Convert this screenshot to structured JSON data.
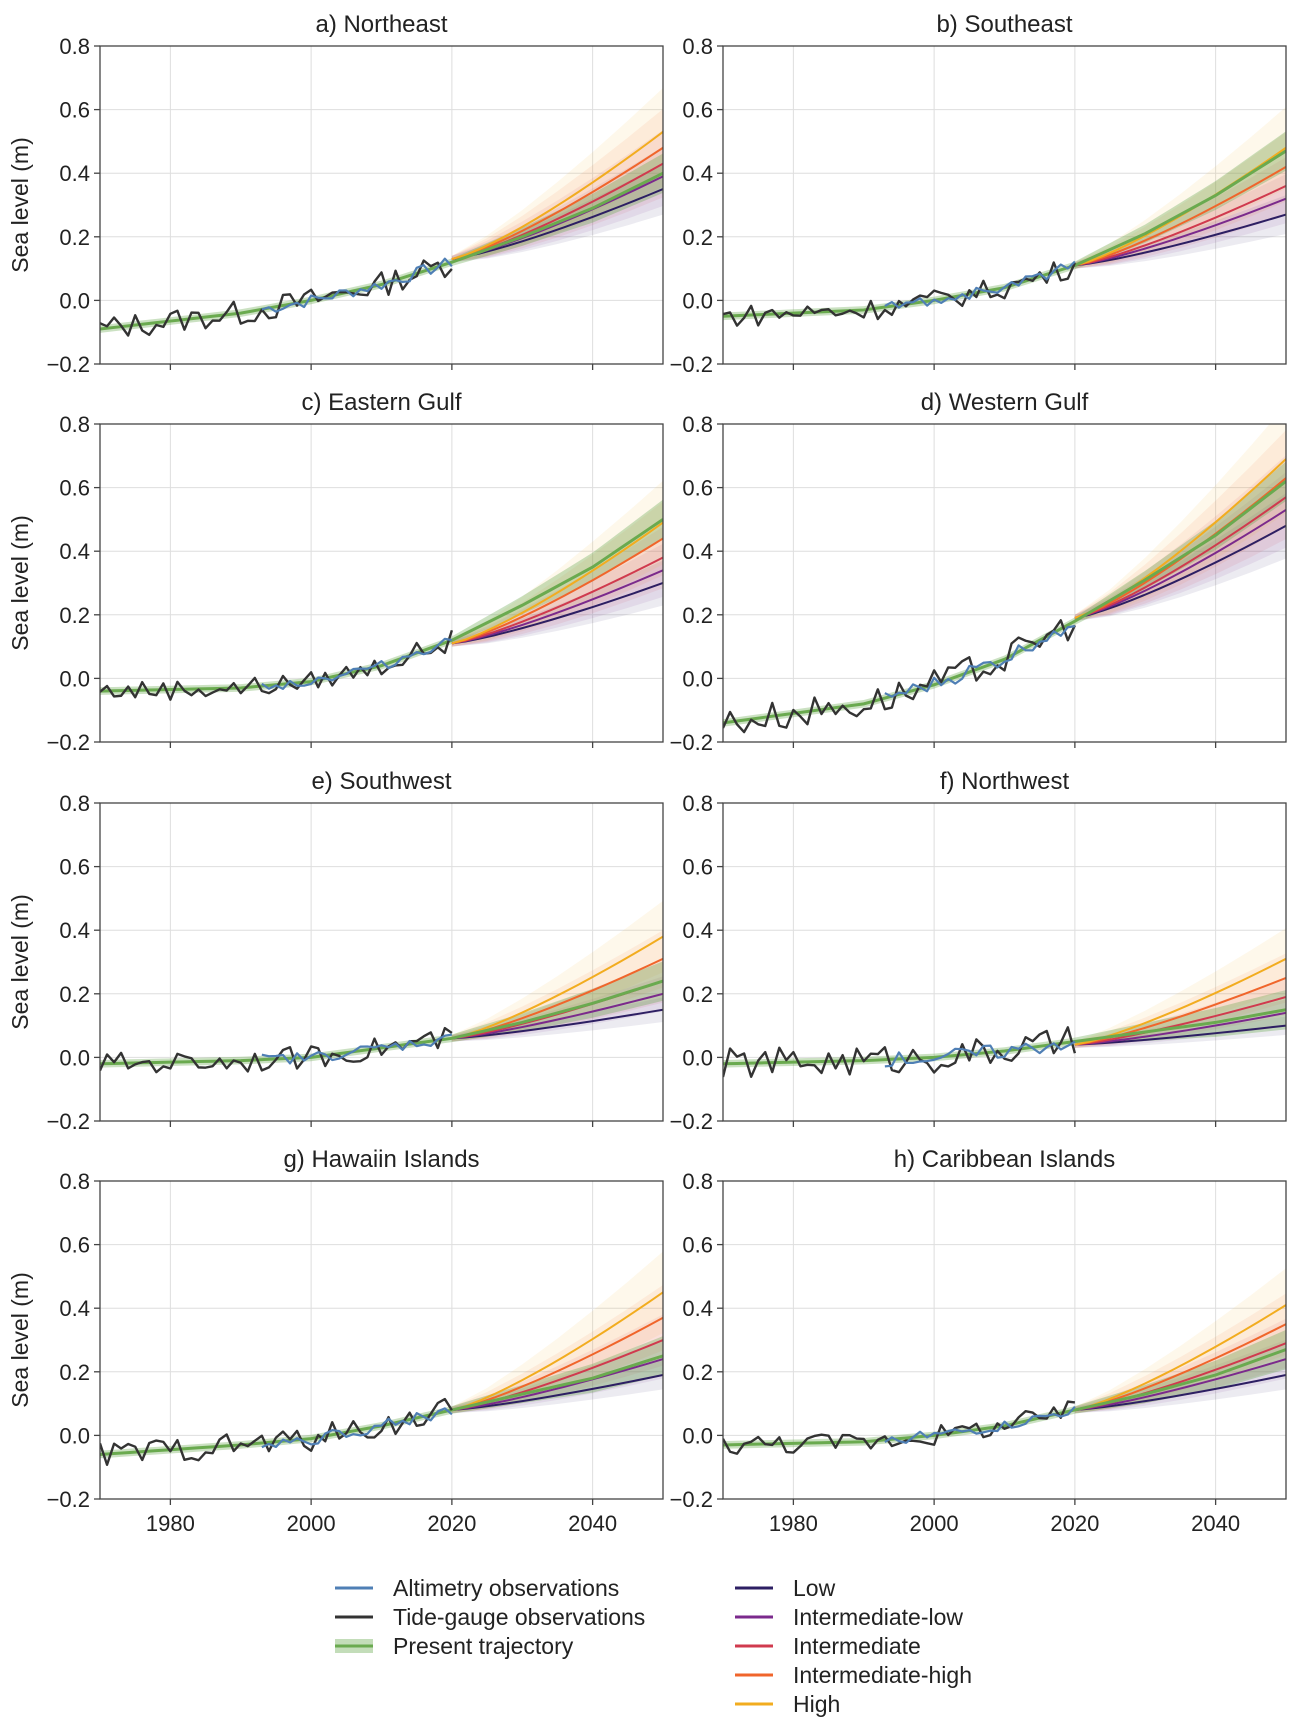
{
  "legend": {
    "items": [
      {
        "id": "alt",
        "label": "Altimetry observations",
        "color": "#4f7fb5"
      },
      {
        "id": "tide",
        "label": "Tide-gauge observations",
        "color": "#333333"
      },
      {
        "id": "traj",
        "label": "Present trajectory",
        "color": "#6aaa4f"
      },
      {
        "id": "low",
        "label": "Low",
        "color": "#2d1f63"
      },
      {
        "id": "intlow",
        "label": "Intermediate-low",
        "color": "#7b2a8c"
      },
      {
        "id": "int",
        "label": "Intermediate",
        "color": "#d03a4e"
      },
      {
        "id": "inthigh",
        "label": "Intermediate-high",
        "color": "#f0652b"
      },
      {
        "id": "high",
        "label": "High",
        "color": "#f2ac1f"
      }
    ]
  },
  "axes": {
    "ylabel": "Sea level (m)",
    "y_ticks": [
      "0.8",
      "0.6",
      "0.4",
      "0.2",
      "0.0",
      "−0.2"
    ],
    "x_ticks": [
      "1980",
      "2000",
      "2020",
      "2040"
    ]
  },
  "chart_data": [
    {
      "type": "line",
      "title": "a) Northeast",
      "xlim": [
        1970,
        2050
      ],
      "ylim": [
        -0.2,
        0.8
      ],
      "observed": {
        "start_year": 1970,
        "start_value": -0.09,
        "end_value": 0.13,
        "amplitude": 0.025
      },
      "altimetry_start": 1993,
      "trajectory": {
        "x": [
          1970,
          1990,
          2000,
          2010,
          2020,
          2030,
          2040,
          2050
        ],
        "y": [
          -0.09,
          -0.04,
          0.0,
          0.05,
          0.12,
          0.2,
          0.29,
          0.4
        ]
      },
      "scenarios_2050": {
        "low": 0.35,
        "intlow": 0.39,
        "int": 0.43,
        "inthigh": 0.48,
        "high": 0.53
      },
      "scenario_start": 0.13
    },
    {
      "type": "line",
      "title": "b) Southeast",
      "xlim": [
        1970,
        2050
      ],
      "ylim": [
        -0.2,
        0.8
      ],
      "observed": {
        "start_year": 1970,
        "start_value": -0.06,
        "end_value": 0.14,
        "amplitude": 0.022
      },
      "altimetry_start": 1993,
      "trajectory": {
        "x": [
          1970,
          1990,
          2000,
          2010,
          2020,
          2030,
          2040,
          2050
        ],
        "y": [
          -0.05,
          -0.03,
          0.0,
          0.04,
          0.11,
          0.21,
          0.33,
          0.47
        ]
      },
      "scenarios_2050": {
        "low": 0.27,
        "intlow": 0.32,
        "int": 0.36,
        "inthigh": 0.42,
        "high": 0.48
      },
      "scenario_start": 0.11
    },
    {
      "type": "line",
      "title": "c) Eastern Gulf",
      "xlim": [
        1970,
        2050
      ],
      "ylim": [
        -0.2,
        0.8
      ],
      "observed": {
        "start_year": 1970,
        "start_value": -0.04,
        "end_value": 0.14,
        "amplitude": 0.02
      },
      "altimetry_start": 1993,
      "trajectory": {
        "x": [
          1970,
          1990,
          2000,
          2010,
          2020,
          2030,
          2040,
          2050
        ],
        "y": [
          -0.04,
          -0.03,
          -0.01,
          0.04,
          0.12,
          0.23,
          0.35,
          0.5
        ]
      },
      "scenarios_2050": {
        "low": 0.3,
        "intlow": 0.34,
        "int": 0.38,
        "inthigh": 0.44,
        "high": 0.49
      },
      "scenario_start": 0.11
    },
    {
      "type": "line",
      "title": "d) Western Gulf",
      "xlim": [
        1970,
        2050
      ],
      "ylim": [
        -0.2,
        0.8
      ],
      "observed": {
        "start_year": 1970,
        "start_value": -0.15,
        "end_value": 0.2,
        "amplitude": 0.03
      },
      "altimetry_start": 1993,
      "trajectory": {
        "x": [
          1970,
          1990,
          2000,
          2010,
          2020,
          2030,
          2040,
          2050
        ],
        "y": [
          -0.14,
          -0.08,
          -0.02,
          0.06,
          0.18,
          0.31,
          0.45,
          0.62
        ]
      },
      "scenarios_2050": {
        "low": 0.48,
        "intlow": 0.53,
        "int": 0.57,
        "inthigh": 0.63,
        "high": 0.69
      },
      "scenario_start": 0.19
    },
    {
      "type": "line",
      "title": "e) Southwest",
      "xlim": [
        1970,
        2050
      ],
      "ylim": [
        -0.2,
        0.8
      ],
      "observed": {
        "start_year": 1970,
        "start_value": -0.02,
        "end_value": 0.06,
        "amplitude": 0.022
      },
      "altimetry_start": 1993,
      "trajectory": {
        "x": [
          1970,
          1990,
          2000,
          2010,
          2020,
          2030,
          2040,
          2050
        ],
        "y": [
          -0.02,
          -0.01,
          0.0,
          0.03,
          0.06,
          0.11,
          0.17,
          0.24
        ]
      },
      "scenarios_2050": {
        "low": 0.15,
        "intlow": 0.2,
        "int": 0.24,
        "inthigh": 0.31,
        "high": 0.38
      },
      "scenario_start": 0.06
    },
    {
      "type": "line",
      "title": "f) Northwest",
      "xlim": [
        1970,
        2050
      ],
      "ylim": [
        -0.2,
        0.8
      ],
      "observed": {
        "start_year": 1970,
        "start_value": -0.02,
        "end_value": 0.06,
        "amplitude": 0.03
      },
      "altimetry_start": 1993,
      "trajectory": {
        "x": [
          1970,
          1990,
          2000,
          2010,
          2020,
          2030,
          2040,
          2050
        ],
        "y": [
          -0.02,
          -0.01,
          0.0,
          0.02,
          0.05,
          0.08,
          0.11,
          0.15
        ]
      },
      "scenarios_2050": {
        "low": 0.1,
        "intlow": 0.14,
        "int": 0.19,
        "inthigh": 0.25,
        "high": 0.31
      },
      "scenario_start": 0.04
    },
    {
      "type": "line",
      "title": "g) Hawaiin Islands",
      "xlim": [
        1970,
        2050
      ],
      "ylim": [
        -0.2,
        0.8
      ],
      "observed": {
        "start_year": 1970,
        "start_value": -0.06,
        "end_value": 0.07,
        "amplitude": 0.025
      },
      "altimetry_start": 1993,
      "trajectory": {
        "x": [
          1970,
          1990,
          2000,
          2010,
          2020,
          2030,
          2040,
          2050
        ],
        "y": [
          -0.06,
          -0.03,
          -0.01,
          0.03,
          0.08,
          0.13,
          0.18,
          0.25
        ]
      },
      "scenarios_2050": {
        "low": 0.19,
        "intlow": 0.24,
        "int": 0.3,
        "inthigh": 0.37,
        "high": 0.45
      },
      "scenario_start": 0.08
    },
    {
      "type": "line",
      "title": "h) Caribbean Islands",
      "xlim": [
        1970,
        2050
      ],
      "ylim": [
        -0.2,
        0.8
      ],
      "observed": {
        "start_year": 1970,
        "start_value": -0.03,
        "end_value": 0.08,
        "amplitude": 0.02
      },
      "altimetry_start": 1993,
      "trajectory": {
        "x": [
          1970,
          1990,
          2000,
          2010,
          2020,
          2030,
          2040,
          2050
        ],
        "y": [
          -0.03,
          -0.02,
          0.0,
          0.03,
          0.08,
          0.13,
          0.19,
          0.27
        ]
      },
      "scenarios_2050": {
        "low": 0.19,
        "intlow": 0.24,
        "int": 0.29,
        "inthigh": 0.35,
        "high": 0.41
      },
      "scenario_start": 0.08
    }
  ]
}
